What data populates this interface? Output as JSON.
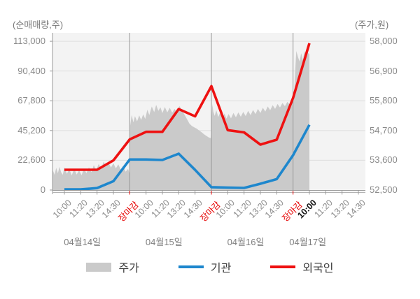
{
  "header": {
    "left_axis_title": "(순매매량,주)",
    "right_axis_title": "(주가,원)"
  },
  "y_left": {
    "labels": [
      "113,000",
      "90,400",
      "67,800",
      "45,200",
      "22,600",
      "0"
    ]
  },
  "y_right": {
    "labels": [
      "58,000",
      "56,900",
      "55,800",
      "54,700",
      "53,600",
      "52,500"
    ]
  },
  "x_axis": {
    "slot_labels": [
      {
        "text": "10:00",
        "type": "normal"
      },
      {
        "text": "11:20",
        "type": "normal"
      },
      {
        "text": "13:20",
        "type": "normal"
      },
      {
        "text": "14:30",
        "type": "normal"
      },
      {
        "text": "장마감",
        "type": "close"
      },
      {
        "text": "10:00",
        "type": "normal"
      },
      {
        "text": "11:20",
        "type": "normal"
      },
      {
        "text": "13:20",
        "type": "normal"
      },
      {
        "text": "14:30",
        "type": "normal"
      },
      {
        "text": "장마감",
        "type": "close"
      },
      {
        "text": "10:00",
        "type": "normal"
      },
      {
        "text": "11:20",
        "type": "normal"
      },
      {
        "text": "13:20",
        "type": "normal"
      },
      {
        "text": "14:30",
        "type": "normal"
      },
      {
        "text": "장마감",
        "type": "close"
      },
      {
        "text": "10:00",
        "type": "current"
      },
      {
        "text": "11:20",
        "type": "normal"
      },
      {
        "text": "13:20",
        "type": "normal"
      },
      {
        "text": "14:30",
        "type": "normal"
      }
    ],
    "day_labels": [
      "04월14일",
      "04월15일",
      "04월16일",
      "04월17일"
    ]
  },
  "legend": {
    "price_label": "주가",
    "institution_label": "기관",
    "foreigner_label": "외국인"
  },
  "colors": {
    "price_area": "#cacaca",
    "institution_line": "#1e87cd",
    "foreigner_line": "#ee1111",
    "close_label_red": "#e60000",
    "plot_bg": "#f3f3f3",
    "grid_h": "#dedede",
    "grid_v_day": "#979797",
    "axis": "#999999"
  },
  "chart_data": {
    "type": "mixed",
    "subtype": "price-area with net-buy lines",
    "left_axis": {
      "label": "(순매매량,주)",
      "min": 0,
      "max": 113000,
      "ticks": [
        0,
        22600,
        45200,
        67800,
        90400,
        113000
      ]
    },
    "right_axis": {
      "label": "(주가,원)",
      "min": 52500,
      "max": 58000,
      "ticks": [
        52500,
        53600,
        54700,
        55800,
        56900,
        58000
      ]
    },
    "x_slots": [
      "04/14 10:00",
      "04/14 11:20",
      "04/14 13:20",
      "04/14 14:30",
      "04/14 장마감",
      "04/15 10:00",
      "04/15 11:20",
      "04/15 13:20",
      "04/15 14:30",
      "04/15 장마감",
      "04/16 10:00",
      "04/16 11:20",
      "04/16 13:20",
      "04/16 14:30",
      "04/16 장마감",
      "04/17 10:00",
      "04/17 11:20",
      "04/17 13:20",
      "04/17 14:30"
    ],
    "day_boundary_slots": [
      4,
      9,
      14
    ],
    "close_slots": [
      4,
      9,
      14
    ],
    "current_slot": 15,
    "series": [
      {
        "name": "주가",
        "type": "area",
        "axis": "right",
        "color": "#cacaca",
        "points": [
          [
            -0.72,
            53250
          ],
          [
            -0.6,
            53060
          ],
          [
            -0.5,
            53320
          ],
          [
            -0.4,
            53120
          ],
          [
            -0.3,
            53360
          ],
          [
            -0.2,
            53160
          ],
          [
            -0.1,
            53060
          ],
          [
            0,
            53340
          ],
          [
            0.15,
            53100
          ],
          [
            0.3,
            53270
          ],
          [
            0.45,
            53040
          ],
          [
            0.6,
            53290
          ],
          [
            0.75,
            53070
          ],
          [
            0.9,
            53230
          ],
          [
            1.05,
            53050
          ],
          [
            1.2,
            53290
          ],
          [
            1.35,
            53120
          ],
          [
            1.5,
            53340
          ],
          [
            1.65,
            53160
          ],
          [
            1.8,
            53420
          ],
          [
            1.95,
            53230
          ],
          [
            2.1,
            53460
          ],
          [
            2.25,
            53290
          ],
          [
            2.4,
            53550
          ],
          [
            2.55,
            53360
          ],
          [
            2.7,
            53520
          ],
          [
            2.85,
            53330
          ],
          [
            3.0,
            53490
          ],
          [
            3.15,
            53300
          ],
          [
            3.3,
            53450
          ],
          [
            3.45,
            53260
          ],
          [
            3.6,
            53400
          ],
          [
            3.75,
            53180
          ],
          [
            3.9,
            53280
          ],
          [
            3.98,
            53120
          ],
          [
            4.03,
            54880
          ],
          [
            4.12,
            55280
          ],
          [
            4.22,
            55000
          ],
          [
            4.32,
            55230
          ],
          [
            4.45,
            55040
          ],
          [
            4.58,
            55260
          ],
          [
            4.7,
            55090
          ],
          [
            4.82,
            55300
          ],
          [
            4.95,
            55130
          ],
          [
            5.08,
            55470
          ],
          [
            5.2,
            55270
          ],
          [
            5.35,
            55590
          ],
          [
            5.5,
            55380
          ],
          [
            5.62,
            55650
          ],
          [
            5.75,
            55430
          ],
          [
            5.88,
            55560
          ],
          [
            6.0,
            55350
          ],
          [
            6.15,
            55570
          ],
          [
            6.3,
            55370
          ],
          [
            6.45,
            55540
          ],
          [
            6.6,
            55360
          ],
          [
            6.75,
            55500
          ],
          [
            6.9,
            55330
          ],
          [
            7.05,
            55610
          ],
          [
            7.2,
            55430
          ],
          [
            7.35,
            55290
          ],
          [
            7.5,
            55130
          ],
          [
            7.65,
            54960
          ],
          [
            7.8,
            54870
          ],
          [
            7.95,
            54820
          ],
          [
            8.1,
            54770
          ],
          [
            8.25,
            54700
          ],
          [
            8.4,
            54640
          ],
          [
            8.55,
            54560
          ],
          [
            8.7,
            54500
          ],
          [
            8.85,
            54440
          ],
          [
            8.97,
            54420
          ],
          [
            9.05,
            55680
          ],
          [
            9.12,
            55400
          ],
          [
            9.2,
            55240
          ],
          [
            9.3,
            55450
          ],
          [
            9.42,
            55200
          ],
          [
            9.55,
            55380
          ],
          [
            9.68,
            55160
          ],
          [
            9.8,
            55330
          ],
          [
            9.92,
            55140
          ],
          [
            10.05,
            55310
          ],
          [
            10.2,
            55150
          ],
          [
            10.35,
            55350
          ],
          [
            10.5,
            55190
          ],
          [
            10.65,
            55370
          ],
          [
            10.8,
            55210
          ],
          [
            10.95,
            55390
          ],
          [
            11.1,
            55230
          ],
          [
            11.25,
            55430
          ],
          [
            11.4,
            55270
          ],
          [
            11.55,
            55460
          ],
          [
            11.7,
            55310
          ],
          [
            11.85,
            55500
          ],
          [
            12.0,
            55350
          ],
          [
            12.15,
            55540
          ],
          [
            12.3,
            55400
          ],
          [
            12.45,
            55590
          ],
          [
            12.6,
            55450
          ],
          [
            12.75,
            55640
          ],
          [
            12.9,
            55500
          ],
          [
            13.05,
            55680
          ],
          [
            13.2,
            55550
          ],
          [
            13.35,
            55720
          ],
          [
            13.5,
            55600
          ],
          [
            13.65,
            55760
          ],
          [
            13.8,
            55660
          ],
          [
            13.95,
            55800
          ],
          [
            14.05,
            55830
          ],
          [
            14.13,
            56900
          ],
          [
            14.2,
            57640
          ],
          [
            14.3,
            57420
          ],
          [
            14.4,
            57250
          ],
          [
            14.5,
            57560
          ],
          [
            14.6,
            57300
          ],
          [
            14.7,
            57640
          ],
          [
            14.8,
            57440
          ],
          [
            14.9,
            57580
          ],
          [
            15.0,
            57520
          ]
        ]
      },
      {
        "name": "기관",
        "type": "line",
        "axis": "left",
        "color": "#1e87cd",
        "values": [
          500,
          500,
          1500,
          6700,
          23200,
          23200,
          22800,
          27600,
          15300,
          2200,
          1800,
          1600,
          4800,
          8300,
          26500,
          49500
        ]
      },
      {
        "name": "외국인",
        "type": "line",
        "axis": "left",
        "color": "#ee1111",
        "values": [
          15400,
          15400,
          15400,
          22500,
          38500,
          44200,
          44200,
          61500,
          56000,
          78900,
          45500,
          43800,
          34500,
          38200,
          70000,
          111500
        ]
      }
    ]
  }
}
